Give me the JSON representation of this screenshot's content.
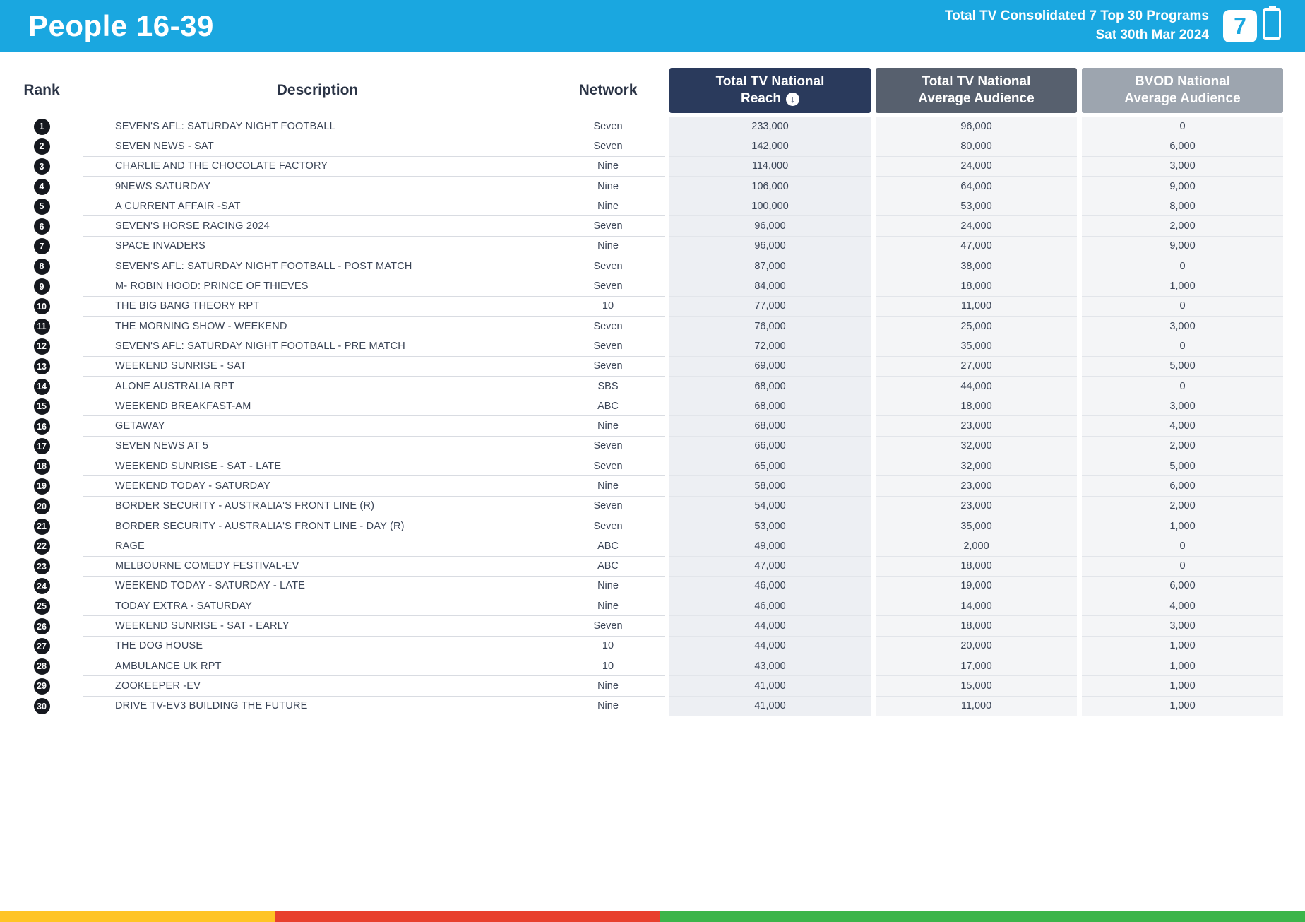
{
  "colors": {
    "header_blue": "#1AA7E0",
    "reach_header": "#2A3A5C",
    "avg_header": "#57606E",
    "bvod_header": "#9DA5AF",
    "badge": "#15181E",
    "text_dark": "#3A4456",
    "col_reach_bg": "#EDEFF3",
    "col_light_bg": "#F4F5F7",
    "bar_gold": "#FFC425",
    "bar_red": "#E8402D",
    "bar_green": "#3BB54A"
  },
  "header": {
    "title": "People 16-39",
    "subtitle_line1": "Total TV Consolidated 7 Top 30 Programs",
    "subtitle_line2": "Sat 30th Mar 2024",
    "logo_text": "7"
  },
  "table": {
    "columns": {
      "rank": "Rank",
      "description": "Description",
      "network": "Network",
      "reach_line1": "Total TV National",
      "reach_line2": "Reach",
      "reach_sort_icon": "↓",
      "avg_line1": "Total TV National",
      "avg_line2": "Average Audience",
      "bvod_line1": "BVOD National",
      "bvod_line2": "Average Audience"
    },
    "rows": [
      {
        "rank": "1",
        "description": "SEVEN'S AFL: SATURDAY NIGHT FOOTBALL",
        "network": "Seven",
        "reach": "233,000",
        "avg_audience": "96,000",
        "bvod_audience": "0"
      },
      {
        "rank": "2",
        "description": "SEVEN NEWS - SAT",
        "network": "Seven",
        "reach": "142,000",
        "avg_audience": "80,000",
        "bvod_audience": "6,000"
      },
      {
        "rank": "3",
        "description": "CHARLIE AND THE CHOCOLATE FACTORY",
        "network": "Nine",
        "reach": "114,000",
        "avg_audience": "24,000",
        "bvod_audience": "3,000"
      },
      {
        "rank": "4",
        "description": "9NEWS SATURDAY",
        "network": "Nine",
        "reach": "106,000",
        "avg_audience": "64,000",
        "bvod_audience": "9,000"
      },
      {
        "rank": "5",
        "description": "A CURRENT AFFAIR -SAT",
        "network": "Nine",
        "reach": "100,000",
        "avg_audience": "53,000",
        "bvod_audience": "8,000"
      },
      {
        "rank": "6",
        "description": "SEVEN'S HORSE RACING 2024",
        "network": "Seven",
        "reach": "96,000",
        "avg_audience": "24,000",
        "bvod_audience": "2,000"
      },
      {
        "rank": "7",
        "description": "SPACE INVADERS",
        "network": "Nine",
        "reach": "96,000",
        "avg_audience": "47,000",
        "bvod_audience": "9,000"
      },
      {
        "rank": "8",
        "description": "SEVEN'S AFL: SATURDAY NIGHT FOOTBALL - POST MATCH",
        "network": "Seven",
        "reach": "87,000",
        "avg_audience": "38,000",
        "bvod_audience": "0"
      },
      {
        "rank": "9",
        "description": "M- ROBIN HOOD: PRINCE OF THIEVES",
        "network": "Seven",
        "reach": "84,000",
        "avg_audience": "18,000",
        "bvod_audience": "1,000"
      },
      {
        "rank": "10",
        "description": "THE BIG BANG THEORY RPT",
        "network": "10",
        "reach": "77,000",
        "avg_audience": "11,000",
        "bvod_audience": "0"
      },
      {
        "rank": "11",
        "description": "THE MORNING SHOW - WEEKEND",
        "network": "Seven",
        "reach": "76,000",
        "avg_audience": "25,000",
        "bvod_audience": "3,000"
      },
      {
        "rank": "12",
        "description": "SEVEN'S AFL: SATURDAY NIGHT FOOTBALL - PRE MATCH",
        "network": "Seven",
        "reach": "72,000",
        "avg_audience": "35,000",
        "bvod_audience": "0"
      },
      {
        "rank": "13",
        "description": "WEEKEND SUNRISE - SAT",
        "network": "Seven",
        "reach": "69,000",
        "avg_audience": "27,000",
        "bvod_audience": "5,000"
      },
      {
        "rank": "14",
        "description": "ALONE AUSTRALIA RPT",
        "network": "SBS",
        "reach": "68,000",
        "avg_audience": "44,000",
        "bvod_audience": "0"
      },
      {
        "rank": "15",
        "description": "WEEKEND BREAKFAST-AM",
        "network": "ABC",
        "reach": "68,000",
        "avg_audience": "18,000",
        "bvod_audience": "3,000"
      },
      {
        "rank": "16",
        "description": "GETAWAY",
        "network": "Nine",
        "reach": "68,000",
        "avg_audience": "23,000",
        "bvod_audience": "4,000"
      },
      {
        "rank": "17",
        "description": "SEVEN NEWS AT 5",
        "network": "Seven",
        "reach": "66,000",
        "avg_audience": "32,000",
        "bvod_audience": "2,000"
      },
      {
        "rank": "18",
        "description": "WEEKEND SUNRISE - SAT - LATE",
        "network": "Seven",
        "reach": "65,000",
        "avg_audience": "32,000",
        "bvod_audience": "5,000"
      },
      {
        "rank": "19",
        "description": "WEEKEND TODAY - SATURDAY",
        "network": "Nine",
        "reach": "58,000",
        "avg_audience": "23,000",
        "bvod_audience": "6,000"
      },
      {
        "rank": "20",
        "description": "BORDER SECURITY - AUSTRALIA'S FRONT LINE (R)",
        "network": "Seven",
        "reach": "54,000",
        "avg_audience": "23,000",
        "bvod_audience": "2,000"
      },
      {
        "rank": "21",
        "description": "BORDER SECURITY - AUSTRALIA'S FRONT LINE - DAY (R)",
        "network": "Seven",
        "reach": "53,000",
        "avg_audience": "35,000",
        "bvod_audience": "1,000"
      },
      {
        "rank": "22",
        "description": "RAGE",
        "network": "ABC",
        "reach": "49,000",
        "avg_audience": "2,000",
        "bvod_audience": "0"
      },
      {
        "rank": "23",
        "description": "MELBOURNE COMEDY FESTIVAL-EV",
        "network": "ABC",
        "reach": "47,000",
        "avg_audience": "18,000",
        "bvod_audience": "0"
      },
      {
        "rank": "24",
        "description": "WEEKEND TODAY - SATURDAY - LATE",
        "network": "Nine",
        "reach": "46,000",
        "avg_audience": "19,000",
        "bvod_audience": "6,000"
      },
      {
        "rank": "25",
        "description": "TODAY EXTRA - SATURDAY",
        "network": "Nine",
        "reach": "46,000",
        "avg_audience": "14,000",
        "bvod_audience": "4,000"
      },
      {
        "rank": "26",
        "description": "WEEKEND SUNRISE - SAT - EARLY",
        "network": "Seven",
        "reach": "44,000",
        "avg_audience": "18,000",
        "bvod_audience": "3,000"
      },
      {
        "rank": "27",
        "description": "THE DOG HOUSE",
        "network": "10",
        "reach": "44,000",
        "avg_audience": "20,000",
        "bvod_audience": "1,000"
      },
      {
        "rank": "28",
        "description": "AMBULANCE UK RPT",
        "network": "10",
        "reach": "43,000",
        "avg_audience": "17,000",
        "bvod_audience": "1,000"
      },
      {
        "rank": "29",
        "description": "ZOOKEEPER -EV",
        "network": "Nine",
        "reach": "41,000",
        "avg_audience": "15,000",
        "bvod_audience": "1,000"
      },
      {
        "rank": "30",
        "description": "DRIVE TV-EV3 BUILDING THE FUTURE",
        "network": "Nine",
        "reach": "41,000",
        "avg_audience": "11,000",
        "bvod_audience": "1,000"
      }
    ]
  },
  "footer": {
    "segments": [
      {
        "name": "gold",
        "color": "#FFC425",
        "width_pct": 21.1
      },
      {
        "name": "red",
        "color": "#E8402D",
        "width_pct": 29.5
      },
      {
        "name": "green",
        "color": "#3BB54A",
        "width_pct": 49.4
      }
    ]
  }
}
